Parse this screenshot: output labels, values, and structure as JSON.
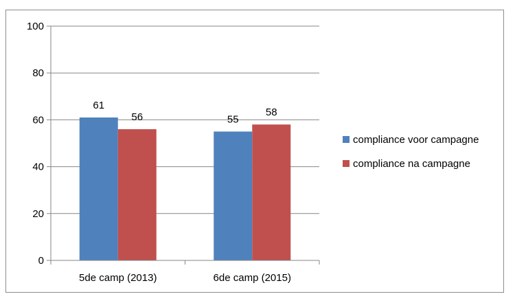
{
  "chart_data": {
    "type": "bar",
    "categories": [
      "5de camp (2013)",
      "6de camp (2015)"
    ],
    "series": [
      {
        "name": "compliance voor campagne",
        "values": [
          61,
          55
        ],
        "color": "#4f81bd"
      },
      {
        "name": "compliance na campagne",
        "values": [
          56,
          58
        ],
        "color": "#c0504d"
      }
    ],
    "title": "",
    "xlabel": "",
    "ylabel": "",
    "ylim": [
      0,
      100
    ],
    "yticks": [
      0,
      20,
      40,
      60,
      80,
      100
    ],
    "grid": true,
    "legend": "right",
    "gridColor": "#868686",
    "axisColor": "#868686"
  }
}
